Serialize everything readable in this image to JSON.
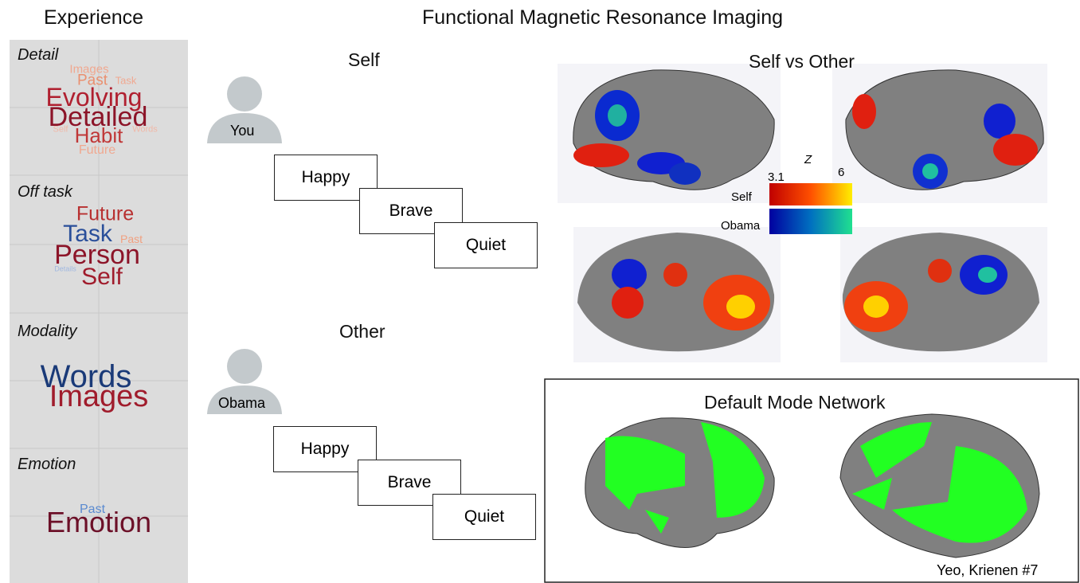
{
  "headers": {
    "experience": "Experience",
    "fmri": "Functional Magnetic Resonance Imaging"
  },
  "experience_panels": [
    {
      "label": "Detail",
      "words": [
        "Images",
        "Past",
        "Task",
        "Evolving",
        "Detailed",
        "Self",
        "Words",
        "Habit",
        "Future"
      ]
    },
    {
      "label": "Off task",
      "words": [
        "Future",
        "Task",
        "Past",
        "Person",
        "Details",
        "Self"
      ]
    },
    {
      "label": "Modality",
      "words": [
        "Words",
        "Images"
      ]
    },
    {
      "label": "Emotion",
      "words": [
        "Past",
        "Emotion"
      ]
    }
  ],
  "conditions": [
    {
      "title": "Self",
      "person": "You",
      "cards": [
        "Happy",
        "Brave",
        "Quiet"
      ]
    },
    {
      "title": "Other",
      "person": "Obama",
      "cards": [
        "Happy",
        "Brave",
        "Quiet"
      ]
    }
  ],
  "contrast": {
    "title": "Self vs Other",
    "colorbar": {
      "label": "Z",
      "min": "3.1",
      "max": "6",
      "rows": [
        "Self",
        "Obama"
      ]
    }
  },
  "network": {
    "title": "Default Mode Network",
    "credit": "Yeo, Krienen #7"
  }
}
